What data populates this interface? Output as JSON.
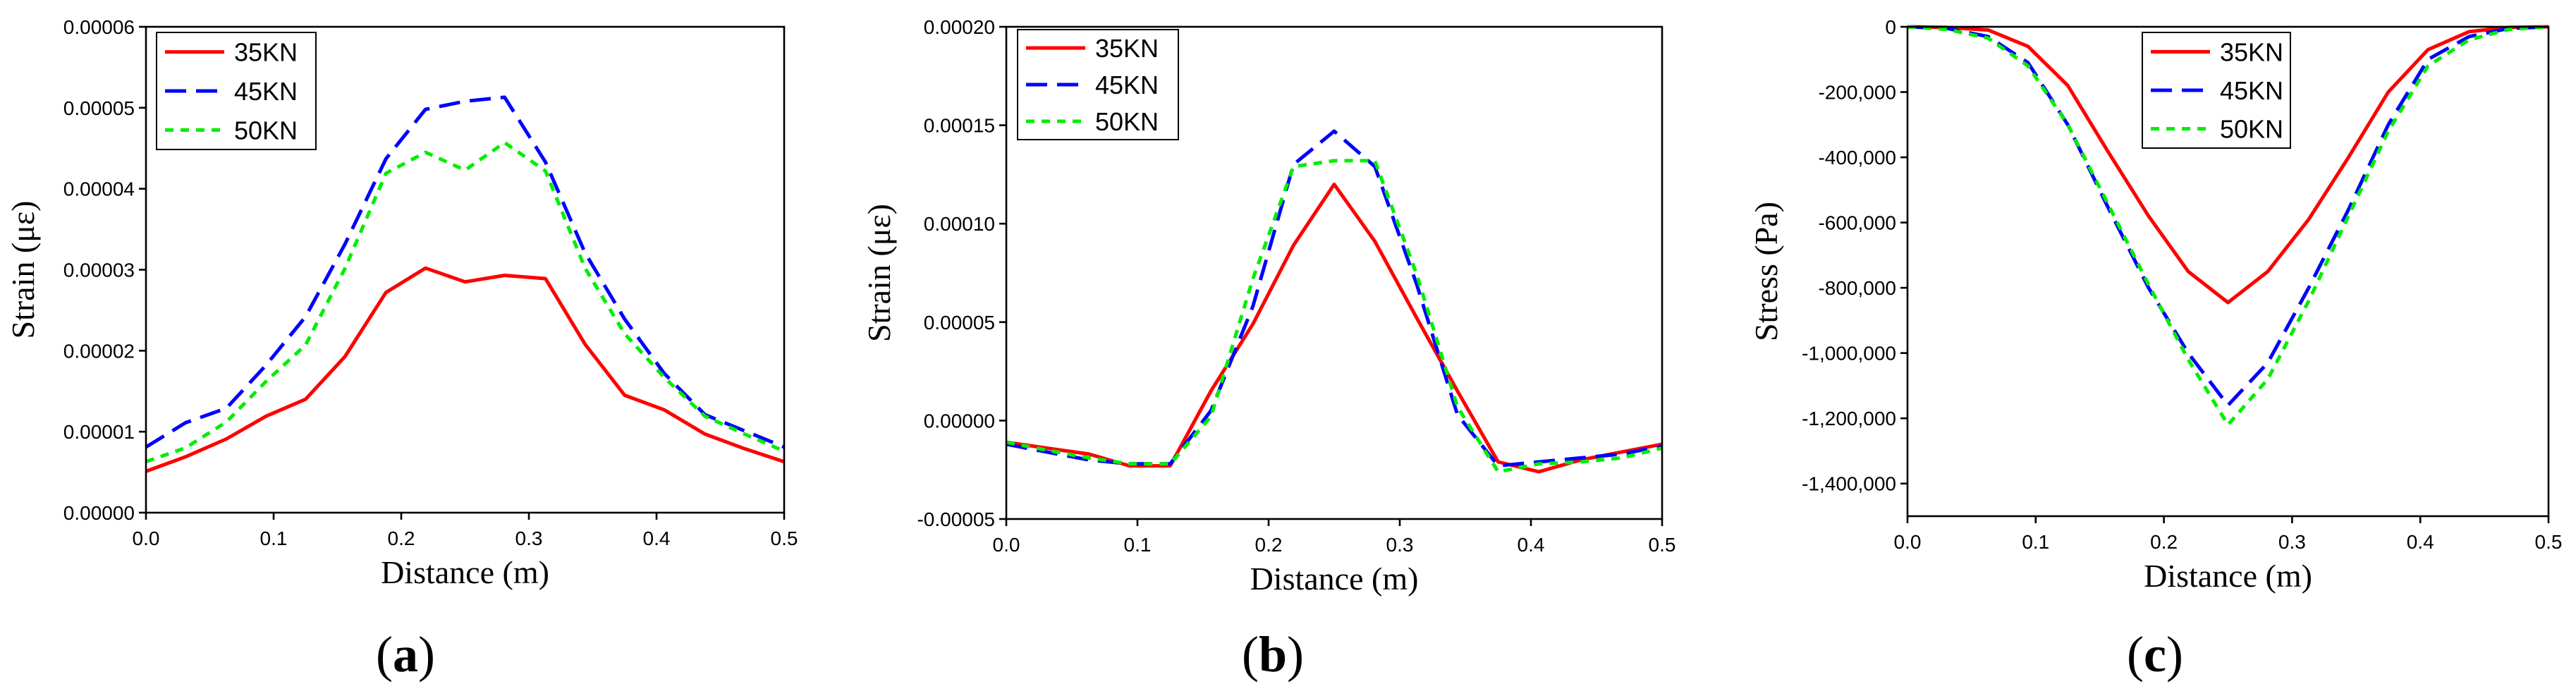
{
  "chart_data": [
    {
      "type": "line",
      "panel_label": "(a)",
      "panel_letter": "a",
      "xlabel": "Distance (m)",
      "ylabel": "Strain (με)",
      "xlim": [
        0.0,
        0.5
      ],
      "ylim": [
        0.0,
        6e-05
      ],
      "xticks": [
        "0.0",
        "0.1",
        "0.2",
        "0.3",
        "0.4",
        "0.5"
      ],
      "xtick_values": [
        0.0,
        0.1,
        0.2,
        0.3,
        0.4,
        0.5
      ],
      "yticks": [
        "0.00000",
        "0.00001",
        "0.00002",
        "0.00003",
        "0.00004",
        "0.00005",
        "0.00006"
      ],
      "ytick_values": [
        0.0,
        1e-05,
        2e-05,
        3e-05,
        4e-05,
        5e-05,
        6e-05
      ],
      "legend_position": "top-left",
      "series": [
        {
          "name": "35KN",
          "color": "#ff0000",
          "style": "solid",
          "x": [
            0.0,
            0.031,
            0.063,
            0.094,
            0.125,
            0.156,
            0.188,
            0.219,
            0.25,
            0.281,
            0.313,
            0.344,
            0.375,
            0.406,
            0.438,
            0.469,
            0.5
          ],
          "y": [
            5.1e-06,
            6.9e-06,
            9.1e-06,
            1.19e-05,
            1.4e-05,
            1.93e-05,
            2.72e-05,
            3.02e-05,
            2.85e-05,
            2.93e-05,
            2.89e-05,
            2.08e-05,
            1.45e-05,
            1.27e-05,
            9.7e-06,
            7.9e-06,
            6.3e-06
          ]
        },
        {
          "name": "45KN",
          "color": "#0000ff",
          "style": "dashed",
          "x": [
            0.0,
            0.031,
            0.063,
            0.094,
            0.125,
            0.156,
            0.188,
            0.219,
            0.25,
            0.281,
            0.313,
            0.344,
            0.375,
            0.406,
            0.438,
            0.469,
            0.5
          ],
          "y": [
            8.1e-06,
            1.11e-05,
            1.29e-05,
            1.82e-05,
            2.42e-05,
            3.32e-05,
            4.37e-05,
            4.98e-05,
            5.08e-05,
            5.13e-05,
            4.33e-05,
            3.21e-05,
            2.39e-05,
            1.72e-05,
            1.21e-05,
            1.01e-05,
            8.1e-06
          ]
        },
        {
          "name": "50KN",
          "color": "#00ee00",
          "style": "dotted",
          "x": [
            0.0,
            0.031,
            0.063,
            0.094,
            0.125,
            0.156,
            0.188,
            0.219,
            0.25,
            0.281,
            0.313,
            0.344,
            0.375,
            0.406,
            0.438,
            0.469,
            0.5
          ],
          "y": [
            6.3e-06,
            8e-06,
            1.12e-05,
            1.62e-05,
            2.07e-05,
            3.02e-05,
            4.19e-05,
            4.45e-05,
            4.23e-05,
            4.57e-05,
            4.22e-05,
            3.02e-05,
            2.21e-05,
            1.67e-05,
            1.19e-05,
            9.7e-06,
            7.6e-06
          ]
        }
      ]
    },
    {
      "type": "line",
      "panel_label": "(b)",
      "panel_letter": "b",
      "xlabel": "Distance (m)",
      "ylabel": "Strain (με)",
      "xlim": [
        0.0,
        0.5
      ],
      "ylim": [
        -5e-05,
        0.0002
      ],
      "xticks": [
        "0.0",
        "0.1",
        "0.2",
        "0.3",
        "0.4",
        "0.5"
      ],
      "xtick_values": [
        0.0,
        0.1,
        0.2,
        0.3,
        0.4,
        0.5
      ],
      "yticks": [
        "-0.00005",
        "0.00000",
        "0.00005",
        "0.00010",
        "0.00015",
        "0.00020"
      ],
      "ytick_values": [
        -5e-05,
        0.0,
        5e-05,
        0.0001,
        0.00015,
        0.0002
      ],
      "legend_position": "top-left",
      "series": [
        {
          "name": "35KN",
          "color": "#ff0000",
          "style": "solid",
          "x": [
            0.0,
            0.031,
            0.063,
            0.094,
            0.125,
            0.156,
            0.188,
            0.219,
            0.25,
            0.281,
            0.313,
            0.344,
            0.375,
            0.406,
            0.438,
            0.469,
            0.5
          ],
          "y": [
            -1.1e-05,
            -1.4e-05,
            -1.7e-05,
            -2.3e-05,
            -2.3e-05,
            1.5e-05,
            4.9e-05,
            8.9e-05,
            0.00012,
            9.1e-05,
            5.2e-05,
            1.5e-05,
            -2.1e-05,
            -2.6e-05,
            -2e-05,
            -1.6e-05,
            -1.2e-05
          ]
        },
        {
          "name": "45KN",
          "color": "#0000ff",
          "style": "dashed",
          "x": [
            0.0,
            0.031,
            0.063,
            0.094,
            0.125,
            0.156,
            0.188,
            0.219,
            0.25,
            0.281,
            0.313,
            0.344,
            0.375,
            0.406,
            0.438,
            0.469,
            0.5
          ],
          "y": [
            -1.2e-05,
            -1.6e-05,
            -2e-05,
            -2.2e-05,
            -2.2e-05,
            5e-06,
            5.8e-05,
            0.00013,
            0.000147,
            0.000129,
            6.9e-05,
            3e-06,
            -2.3e-05,
            -2.1e-05,
            -1.9e-05,
            -1.7e-05,
            -1.3e-05
          ]
        },
        {
          "name": "50KN",
          "color": "#00ee00",
          "style": "dotted",
          "x": [
            0.0,
            0.031,
            0.063,
            0.094,
            0.125,
            0.156,
            0.188,
            0.219,
            0.25,
            0.281,
            0.313,
            0.344,
            0.375,
            0.406,
            0.438,
            0.469,
            0.5
          ],
          "y": [
            -1.1e-05,
            -1.5e-05,
            -1.9e-05,
            -2.2e-05,
            -2.2e-05,
            2e-06,
            7.2e-05,
            0.000129,
            0.000132,
            0.000132,
            7.4e-05,
            7e-06,
            -2.6e-05,
            -2.2e-05,
            -2.1e-05,
            -1.9e-05,
            -1.4e-05
          ]
        }
      ]
    },
    {
      "type": "line",
      "panel_label": "(c)",
      "panel_letter": "c",
      "xlabel": "Distance (m)",
      "ylabel": "Stress (Pa)",
      "xlim": [
        0.0,
        0.5
      ],
      "ylim": [
        -1500000,
        0
      ],
      "xticks": [
        "0.0",
        "0.1",
        "0.2",
        "0.3",
        "0.4",
        "0.5"
      ],
      "xtick_values": [
        0.0,
        0.1,
        0.2,
        0.3,
        0.4,
        0.5
      ],
      "yticks": [
        "-1,400,000",
        "-1,200,000",
        "-1,000,000",
        "-800,000",
        "-600,000",
        "-400,000",
        "-200,000",
        "0"
      ],
      "ytick_values": [
        -1400000,
        -1200000,
        -1000000,
        -800000,
        -600000,
        -400000,
        -200000,
        0
      ],
      "legend_position": "top-center",
      "series": [
        {
          "name": "35KN",
          "color": "#ff0000",
          "style": "solid",
          "x": [
            0.0,
            0.031,
            0.063,
            0.094,
            0.125,
            0.156,
            0.188,
            0.219,
            0.25,
            0.281,
            0.313,
            0.344,
            0.375,
            0.406,
            0.438,
            0.469,
            0.5
          ],
          "y": [
            0,
            -2000,
            -10000,
            -60000,
            -180000,
            -380000,
            -580000,
            -750000,
            -845000,
            -750000,
            -590000,
            -400000,
            -200000,
            -70000,
            -15000,
            -2000,
            0
          ]
        },
        {
          "name": "45KN",
          "color": "#0000ff",
          "style": "dashed",
          "x": [
            0.0,
            0.031,
            0.063,
            0.094,
            0.125,
            0.156,
            0.188,
            0.219,
            0.25,
            0.281,
            0.313,
            0.344,
            0.375,
            0.406,
            0.438,
            0.469,
            0.5
          ],
          "y": [
            0,
            -5000,
            -30000,
            -110000,
            -300000,
            -550000,
            -800000,
            -1000000,
            -1160000,
            -1030000,
            -800000,
            -560000,
            -300000,
            -100000,
            -30000,
            -5000,
            0
          ]
        },
        {
          "name": "50KN",
          "color": "#00ee00",
          "style": "dotted",
          "x": [
            0.0,
            0.031,
            0.063,
            0.094,
            0.125,
            0.156,
            0.188,
            0.219,
            0.25,
            0.281,
            0.313,
            0.344,
            0.375,
            0.406,
            0.438,
            0.469,
            0.5
          ],
          "y": [
            0,
            -8000,
            -35000,
            -120000,
            -300000,
            -540000,
            -790000,
            -1020000,
            -1220000,
            -1080000,
            -840000,
            -580000,
            -320000,
            -120000,
            -40000,
            -8000,
            0
          ]
        }
      ]
    }
  ]
}
